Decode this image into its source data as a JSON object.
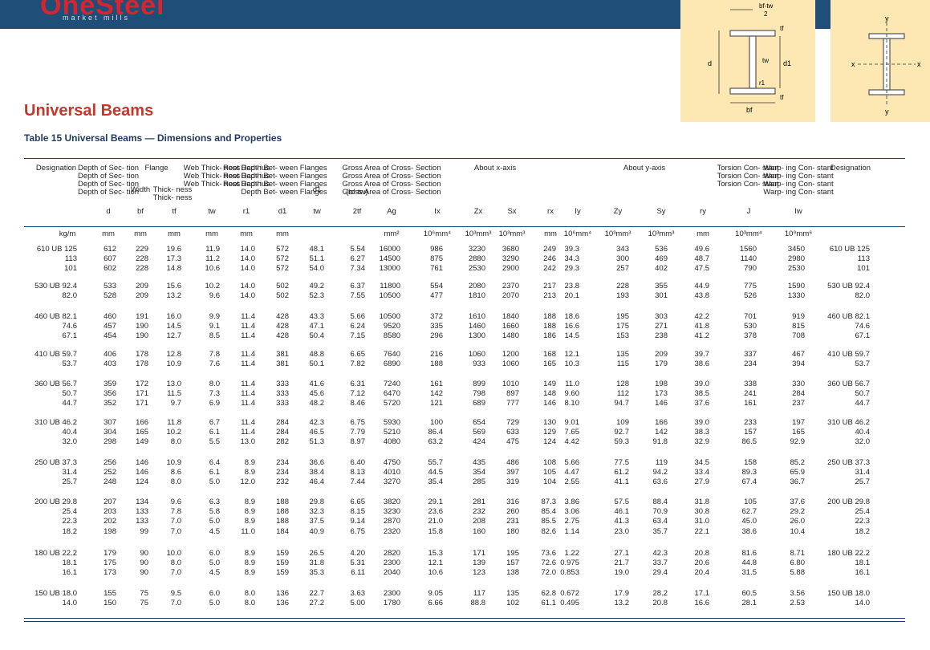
{
  "header": {
    "logo": "OneSteel",
    "logo_sub": "market mills"
  },
  "page_title": "Universal Beams",
  "table_title": "Table 15 Universal Beams — Dimensions and Properties",
  "diagram": {
    "left_labels": {
      "bf_minus_tw": "bf-tw",
      "two": "2",
      "tf": "tf",
      "tw": "tw",
      "d": "d",
      "d1": "d1",
      "r1": "r1",
      "bf": "bf",
      "tf2": "tf"
    },
    "right_labels": {
      "y_top": "y",
      "x_left": "x",
      "x_right": "x",
      "y_bottom": "y"
    }
  },
  "columns": {
    "designation": "Designation",
    "depth": "Depth\nof\nSec-\ntion",
    "flange": "Flange",
    "width": "Width",
    "thick": "Thick-\nness",
    "web": "Web\nThick-\nness",
    "root": "Root\nRad-\nius",
    "between": "Depth\nBet-\nween\nFlanges",
    "d1tw": "d1",
    "ratio": "(bf-tw)",
    "gross": "Gross\nArea of\nCross-\nSection",
    "about_x": "About x-axis",
    "about_y": "About y-axis",
    "torsion": "Torsion\nCon-\nstant",
    "warping": "Warp-\ning\nCon-\nstant",
    "designation2": "Designation"
  },
  "symbols": [
    "d",
    "bf",
    "tf",
    "tw",
    "r1",
    "d1",
    "tw",
    "2tf",
    "Ag",
    "Ix",
    "Zx",
    "Sx",
    "rx",
    "Iy",
    "Zy",
    "Sy",
    "ry",
    "J",
    "Iw"
  ],
  "units": [
    "kg/m",
    "mm",
    "mm",
    "mm",
    "mm",
    "mm",
    "mm",
    "mm²",
    "10⁶mm⁴",
    "10³mm³",
    "10³mm³",
    "mm",
    "10⁶mm⁴",
    "10³mm³",
    "10³mm³",
    "mm",
    "10³mm⁴",
    "10⁹mm⁶"
  ],
  "groups": [
    {
      "rows": [
        [
          "610 UB 125",
          "612",
          "229",
          "19.6",
          "11.9",
          "14.0",
          "572",
          "48.1",
          "5.54",
          "16000",
          "986",
          "3230",
          "3680",
          "249",
          "39.3",
          "343",
          "536",
          "49.6",
          "1560",
          "3450",
          "610 UB 125"
        ],
        [
          "113",
          "607",
          "228",
          "17.3",
          "11.2",
          "14.0",
          "572",
          "51.1",
          "6.27",
          "14500",
          "875",
          "2880",
          "3290",
          "246",
          "34.3",
          "300",
          "469",
          "48.7",
          "1140",
          "2980",
          "113"
        ],
        [
          "101",
          "602",
          "228",
          "14.8",
          "10.6",
          "14.0",
          "572",
          "54.0",
          "7.34",
          "13000",
          "761",
          "2530",
          "2900",
          "242",
          "29.3",
          "257",
          "402",
          "47.5",
          "790",
          "2530",
          "101"
        ]
      ]
    },
    {
      "rows": [
        [
          "530 UB 92.4",
          "533",
          "209",
          "15.6",
          "10.2",
          "14.0",
          "502",
          "49.2",
          "6.37",
          "11800",
          "554",
          "2080",
          "2370",
          "217",
          "23.8",
          "228",
          "355",
          "44.9",
          "775",
          "1590",
          "530 UB 92.4"
        ],
        [
          "82.0",
          "528",
          "209",
          "13.2",
          "9.6",
          "14.0",
          "502",
          "52.3",
          "7.55",
          "10500",
          "477",
          "1810",
          "2070",
          "213",
          "20.1",
          "193",
          "301",
          "43.8",
          "526",
          "1330",
          "82.0"
        ]
      ]
    },
    {
      "rows": [
        [
          "460 UB 82.1",
          "460",
          "191",
          "16.0",
          "9.9",
          "11.4",
          "428",
          "43.3",
          "5.66",
          "10500",
          "372",
          "1610",
          "1840",
          "188",
          "18.6",
          "195",
          "303",
          "42.2",
          "701",
          "919",
          "460 UB 82.1"
        ],
        [
          "74.6",
          "457",
          "190",
          "14.5",
          "9.1",
          "11.4",
          "428",
          "47.1",
          "6.24",
          "9520",
          "335",
          "1460",
          "1660",
          "188",
          "16.6",
          "175",
          "271",
          "41.8",
          "530",
          "815",
          "74.6"
        ],
        [
          "67.1",
          "454",
          "190",
          "12.7",
          "8.5",
          "11.4",
          "428",
          "50.4",
          "7.15",
          "8580",
          "296",
          "1300",
          "1480",
          "186",
          "14.5",
          "153",
          "238",
          "41.2",
          "378",
          "708",
          "67.1"
        ]
      ]
    },
    {
      "rows": [
        [
          "410 UB 59.7",
          "406",
          "178",
          "12.8",
          "7.8",
          "11.4",
          "381",
          "48.8",
          "6.65",
          "7640",
          "216",
          "1060",
          "1200",
          "168",
          "12.1",
          "135",
          "209",
          "39.7",
          "337",
          "467",
          "410 UB 59.7"
        ],
        [
          "53.7",
          "403",
          "178",
          "10.9",
          "7.6",
          "11.4",
          "381",
          "50.1",
          "7.82",
          "6890",
          "188",
          "933",
          "1060",
          "165",
          "10.3",
          "115",
          "179",
          "38.6",
          "234",
          "394",
          "53.7"
        ]
      ]
    },
    {
      "rows": [
        [
          "360 UB 56.7",
          "359",
          "172",
          "13.0",
          "8.0",
          "11.4",
          "333",
          "41.6",
          "6.31",
          "7240",
          "161",
          "899",
          "1010",
          "149",
          "11.0",
          "128",
          "198",
          "39.0",
          "338",
          "330",
          "360 UB 56.7"
        ],
        [
          "50.7",
          "356",
          "171",
          "11.5",
          "7.3",
          "11.4",
          "333",
          "45.6",
          "7.12",
          "6470",
          "142",
          "798",
          "897",
          "148",
          "9.60",
          "112",
          "173",
          "38.5",
          "241",
          "284",
          "50.7"
        ],
        [
          "44.7",
          "352",
          "171",
          "9.7",
          "6.9",
          "11.4",
          "333",
          "48.2",
          "8.46",
          "5720",
          "121",
          "689",
          "777",
          "146",
          "8.10",
          "94.7",
          "146",
          "37.6",
          "161",
          "237",
          "44.7"
        ]
      ]
    },
    {
      "rows": [
        [
          "310 UB 46.2",
          "307",
          "166",
          "11.8",
          "6.7",
          "11.4",
          "284",
          "42.3",
          "6.75",
          "5930",
          "100",
          "654",
          "729",
          "130",
          "9.01",
          "109",
          "166",
          "39.0",
          "233",
          "197",
          "310 UB 46.2"
        ],
        [
          "40.4",
          "304",
          "165",
          "10.2",
          "6.1",
          "11.4",
          "284",
          "46.5",
          "7.79",
          "5210",
          "86.4",
          "569",
          "633",
          "129",
          "7.65",
          "92.7",
          "142",
          "38.3",
          "157",
          "165",
          "40.4"
        ],
        [
          "32.0",
          "298",
          "149",
          "8.0",
          "5.5",
          "13.0",
          "282",
          "51.3",
          "8.97",
          "4080",
          "63.2",
          "424",
          "475",
          "124",
          "4.42",
          "59.3",
          "91.8",
          "32.9",
          "86.5",
          "92.9",
          "32.0"
        ]
      ]
    },
    {
      "rows": [
        [
          "250 UB 37.3",
          "256",
          "146",
          "10.9",
          "6.4",
          "8.9",
          "234",
          "36.6",
          "6.40",
          "4750",
          "55.7",
          "435",
          "486",
          "108",
          "5.66",
          "77.5",
          "119",
          "34.5",
          "158",
          "85.2",
          "250 UB 37.3"
        ],
        [
          "31.4",
          "252",
          "146",
          "8.6",
          "6.1",
          "8.9",
          "234",
          "38.4",
          "8.13",
          "4010",
          "44.5",
          "354",
          "397",
          "105",
          "4.47",
          "61.2",
          "94.2",
          "33.4",
          "89.3",
          "65.9",
          "31.4"
        ],
        [
          "25.7",
          "248",
          "124",
          "8.0",
          "5.0",
          "12.0",
          "232",
          "46.4",
          "7.44",
          "3270",
          "35.4",
          "285",
          "319",
          "104",
          "2.55",
          "41.1",
          "63.6",
          "27.9",
          "67.4",
          "36.7",
          "25.7"
        ]
      ]
    },
    {
      "rows": [
        [
          "200 UB 29.8",
          "207",
          "134",
          "9.6",
          "6.3",
          "8.9",
          "188",
          "29.8",
          "6.65",
          "3820",
          "29.1",
          "281",
          "316",
          "87.3",
          "3.86",
          "57.5",
          "88.4",
          "31.8",
          "105",
          "37.6",
          "200 UB 29.8"
        ],
        [
          "25.4",
          "203",
          "133",
          "7.8",
          "5.8",
          "8.9",
          "188",
          "32.3",
          "8.15",
          "3230",
          "23.6",
          "232",
          "260",
          "85.4",
          "3.06",
          "46.1",
          "70.9",
          "30.8",
          "62.7",
          "29.2",
          "25.4"
        ],
        [
          "22.3",
          "202",
          "133",
          "7.0",
          "5.0",
          "8.9",
          "188",
          "37.5",
          "9.14",
          "2870",
          "21.0",
          "208",
          "231",
          "85.5",
          "2.75",
          "41.3",
          "63.4",
          "31.0",
          "45.0",
          "26.0",
          "22.3"
        ],
        [
          "18.2",
          "198",
          "99",
          "7.0",
          "4.5",
          "11.0",
          "184",
          "40.9",
          "6.75",
          "2320",
          "15.8",
          "160",
          "180",
          "82.6",
          "1.14",
          "23.0",
          "35.7",
          "22.1",
          "38.6",
          "10.4",
          "18.2"
        ]
      ]
    },
    {
      "rows": [
        [
          "180 UB 22.2",
          "179",
          "90",
          "10.0",
          "6.0",
          "8.9",
          "159",
          "26.5",
          "4.20",
          "2820",
          "15.3",
          "171",
          "195",
          "73.6",
          "1.22",
          "27.1",
          "42.3",
          "20.8",
          "81.6",
          "8.71",
          "180 UB 22.2"
        ],
        [
          "18.1",
          "175",
          "90",
          "8.0",
          "5.0",
          "8.9",
          "159",
          "31.8",
          "5.31",
          "2300",
          "12.1",
          "139",
          "157",
          "72.6",
          "0.975",
          "21.7",
          "33.7",
          "20.6",
          "44.8",
          "6.80",
          "18.1"
        ],
        [
          "16.1",
          "173",
          "90",
          "7.0",
          "4.5",
          "8.9",
          "159",
          "35.3",
          "6.11",
          "2040",
          "10.6",
          "123",
          "138",
          "72.0",
          "0.853",
          "19.0",
          "29.4",
          "20.4",
          "31.5",
          "5.88",
          "16.1"
        ]
      ]
    },
    {
      "rows": [
        [
          "150 UB 18.0",
          "155",
          "75",
          "9.5",
          "6.0",
          "8.0",
          "136",
          "22.7",
          "3.63",
          "2300",
          "9.05",
          "117",
          "135",
          "62.8",
          "0.672",
          "17.9",
          "28.2",
          "17.1",
          "60.5",
          "3.56",
          "150 UB 18.0"
        ],
        [
          "14.0",
          "150",
          "75",
          "7.0",
          "5.0",
          "8.0",
          "136",
          "27.2",
          "5.00",
          "1780",
          "6.66",
          "88.8",
          "102",
          "61.1",
          "0.495",
          "13.2",
          "20.8",
          "16.6",
          "28.1",
          "2.53",
          "14.0"
        ]
      ]
    }
  ]
}
